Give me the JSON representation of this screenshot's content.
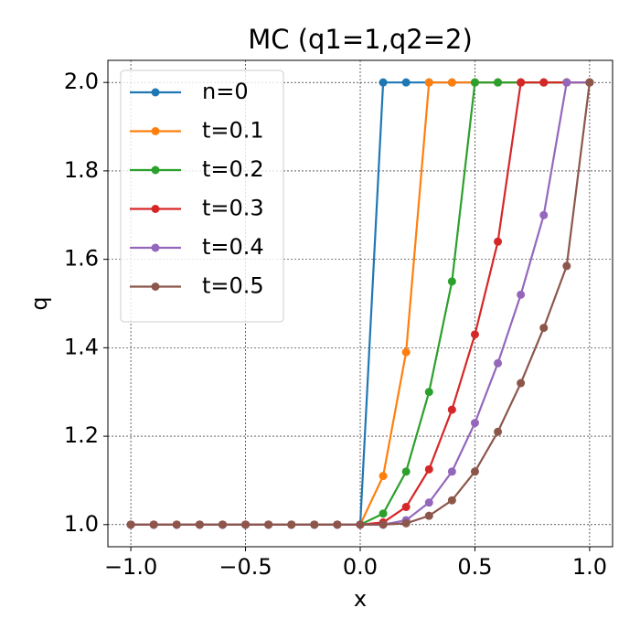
{
  "chart_data": {
    "type": "line",
    "title": "MC (q1=1,q2=2)",
    "xlabel": "x",
    "ylabel": "q",
    "x": [
      -1.0,
      -0.9,
      -0.8,
      -0.7,
      -0.6,
      -0.5,
      -0.4,
      -0.3,
      -0.2,
      -0.1,
      0.0,
      0.1,
      0.2,
      0.3,
      0.4,
      0.5,
      0.6,
      0.7,
      0.8,
      0.9,
      1.0
    ],
    "series": [
      {
        "name": "n=0",
        "color": "#1f77b4",
        "values": [
          1,
          1,
          1,
          1,
          1,
          1,
          1,
          1,
          1,
          1,
          1,
          2,
          2,
          2,
          2,
          2,
          2,
          2,
          2,
          2,
          2
        ]
      },
      {
        "name": "t=0.1",
        "color": "#ff7f0e",
        "values": [
          1,
          1,
          1,
          1,
          1,
          1,
          1,
          1,
          1,
          1,
          1,
          1.11,
          1.39,
          2,
          2,
          2,
          2,
          2,
          2,
          2,
          2
        ]
      },
      {
        "name": "t=0.2",
        "color": "#2ca02c",
        "values": [
          1,
          1,
          1,
          1,
          1,
          1,
          1,
          1,
          1,
          1,
          1,
          1.025,
          1.12,
          1.3,
          1.55,
          2,
          2,
          2,
          2,
          2,
          2
        ]
      },
      {
        "name": "t=0.3",
        "color": "#d62728",
        "values": [
          1,
          1,
          1,
          1,
          1,
          1,
          1,
          1,
          1,
          1,
          1,
          1.005,
          1.04,
          1.125,
          1.26,
          1.43,
          1.64,
          2,
          2,
          2,
          2
        ]
      },
      {
        "name": "t=0.4",
        "color": "#9467bd",
        "values": [
          1,
          1,
          1,
          1,
          1,
          1,
          1,
          1,
          1,
          1,
          1,
          1.0,
          1.01,
          1.05,
          1.12,
          1.23,
          1.365,
          1.52,
          1.7,
          2,
          2
        ]
      },
      {
        "name": "t=0.5",
        "color": "#8c564b",
        "values": [
          1,
          1,
          1,
          1,
          1,
          1,
          1,
          1,
          1,
          1,
          1,
          1.0,
          1.003,
          1.02,
          1.055,
          1.12,
          1.21,
          1.32,
          1.445,
          1.585,
          2
        ]
      }
    ],
    "xlim": [
      -1.1,
      1.1
    ],
    "ylim": [
      0.95,
      2.05
    ],
    "xticks": [
      {
        "value": -1.0,
        "label": "−1.0"
      },
      {
        "value": -0.5,
        "label": "−0.5"
      },
      {
        "value": 0.0,
        "label": "0.0"
      },
      {
        "value": 0.5,
        "label": "0.5"
      },
      {
        "value": 1.0,
        "label": "1.0"
      }
    ],
    "yticks": [
      {
        "value": 1.0,
        "label": "1.0"
      },
      {
        "value": 1.2,
        "label": "1.2"
      },
      {
        "value": 1.4,
        "label": "1.4"
      },
      {
        "value": 1.6,
        "label": "1.6"
      },
      {
        "value": 1.8,
        "label": "1.8"
      },
      {
        "value": 2.0,
        "label": "2.0"
      }
    ],
    "grid": true,
    "legend": "upper left"
  }
}
